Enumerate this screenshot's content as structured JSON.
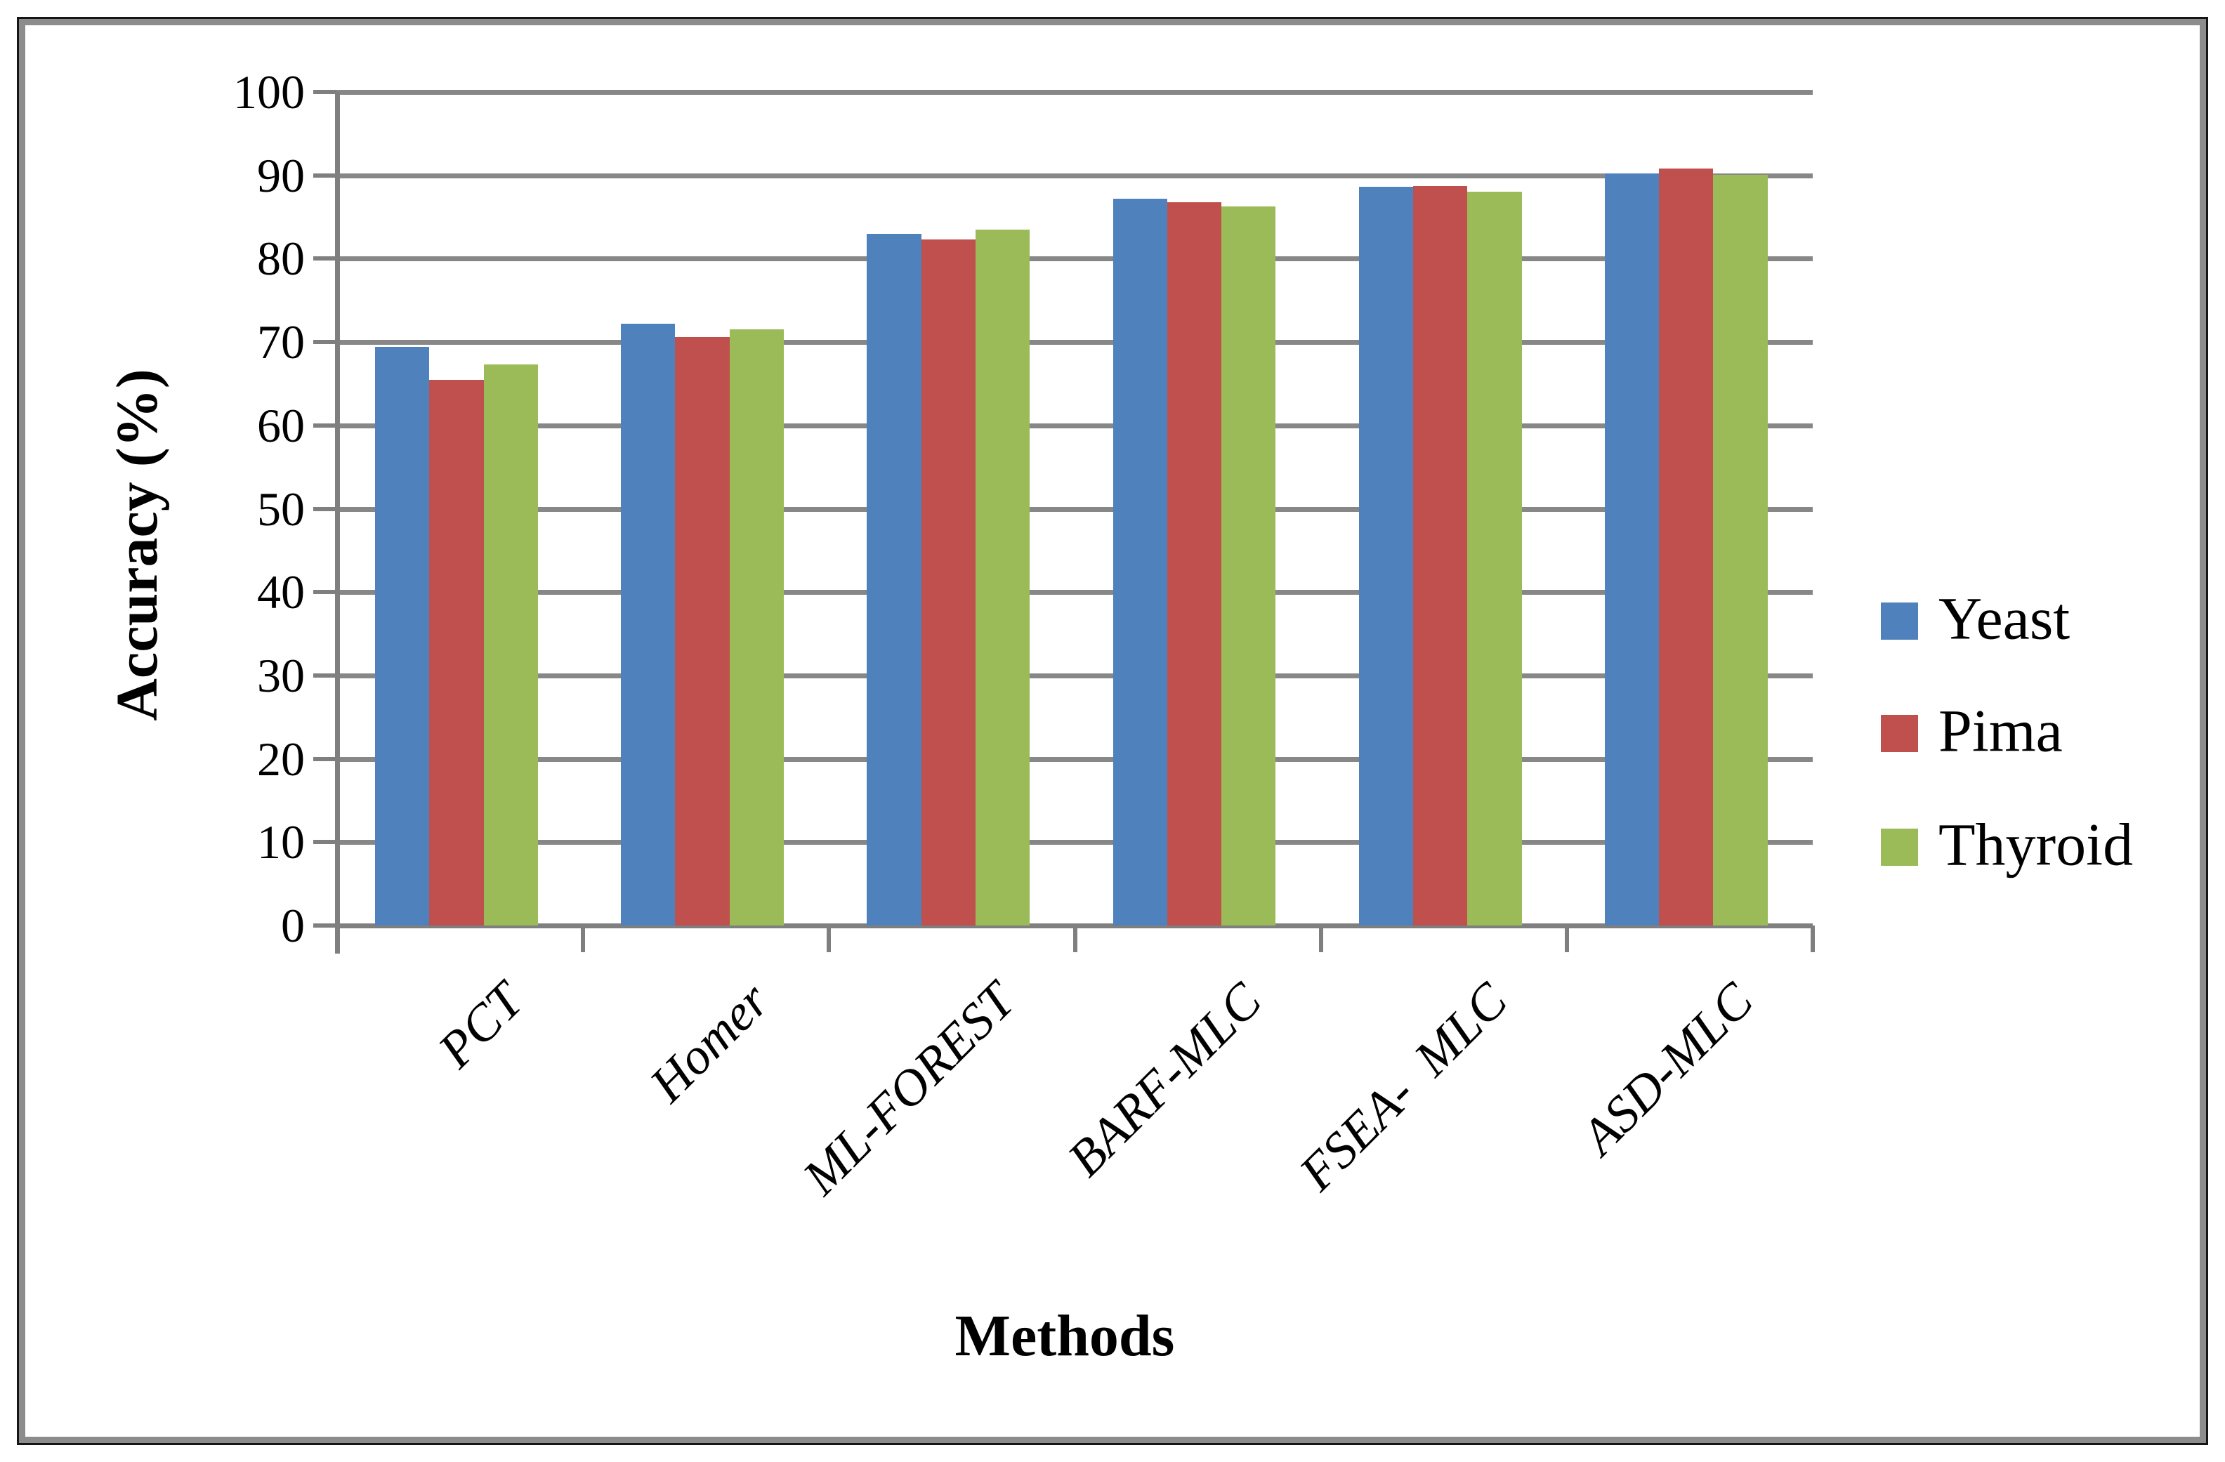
{
  "figure": {
    "background": "#ffffff",
    "outer_border_color": "#151515",
    "inner_border_color": "#8c8c8c",
    "gridline_color": "#878787",
    "axis_color": "#7f7f7f"
  },
  "chart_data": {
    "type": "bar",
    "title": "",
    "xlabel": "Methods",
    "ylabel": "Accuracy (%)",
    "ylim": [
      0,
      100
    ],
    "ytick_step": 10,
    "ytick_labels": [
      "100",
      "90",
      "80",
      "70",
      "60",
      "50",
      "40",
      "30",
      "20",
      "10",
      "0"
    ],
    "grid": true,
    "legend_position": "right",
    "legend_entries": [
      "Yeast",
      "Pima",
      "Thyroid"
    ],
    "categories": [
      "PCT",
      "Homer",
      "ML-FOREST",
      "BARF-MLC",
      "FSEA-  MLC",
      "ASD-MLC"
    ],
    "series": [
      {
        "name": "Yeast",
        "color": "#4F81BD",
        "values": [
          69.4,
          72.2,
          83.0,
          87.2,
          88.6,
          90.2
        ]
      },
      {
        "name": "Pima",
        "color": "#C0504D",
        "values": [
          65.5,
          70.6,
          82.3,
          86.8,
          88.7,
          90.8
        ]
      },
      {
        "name": "Thyroid",
        "color": "#9BBB59",
        "values": [
          67.3,
          71.5,
          83.5,
          86.3,
          88.0,
          90.1
        ]
      }
    ]
  }
}
